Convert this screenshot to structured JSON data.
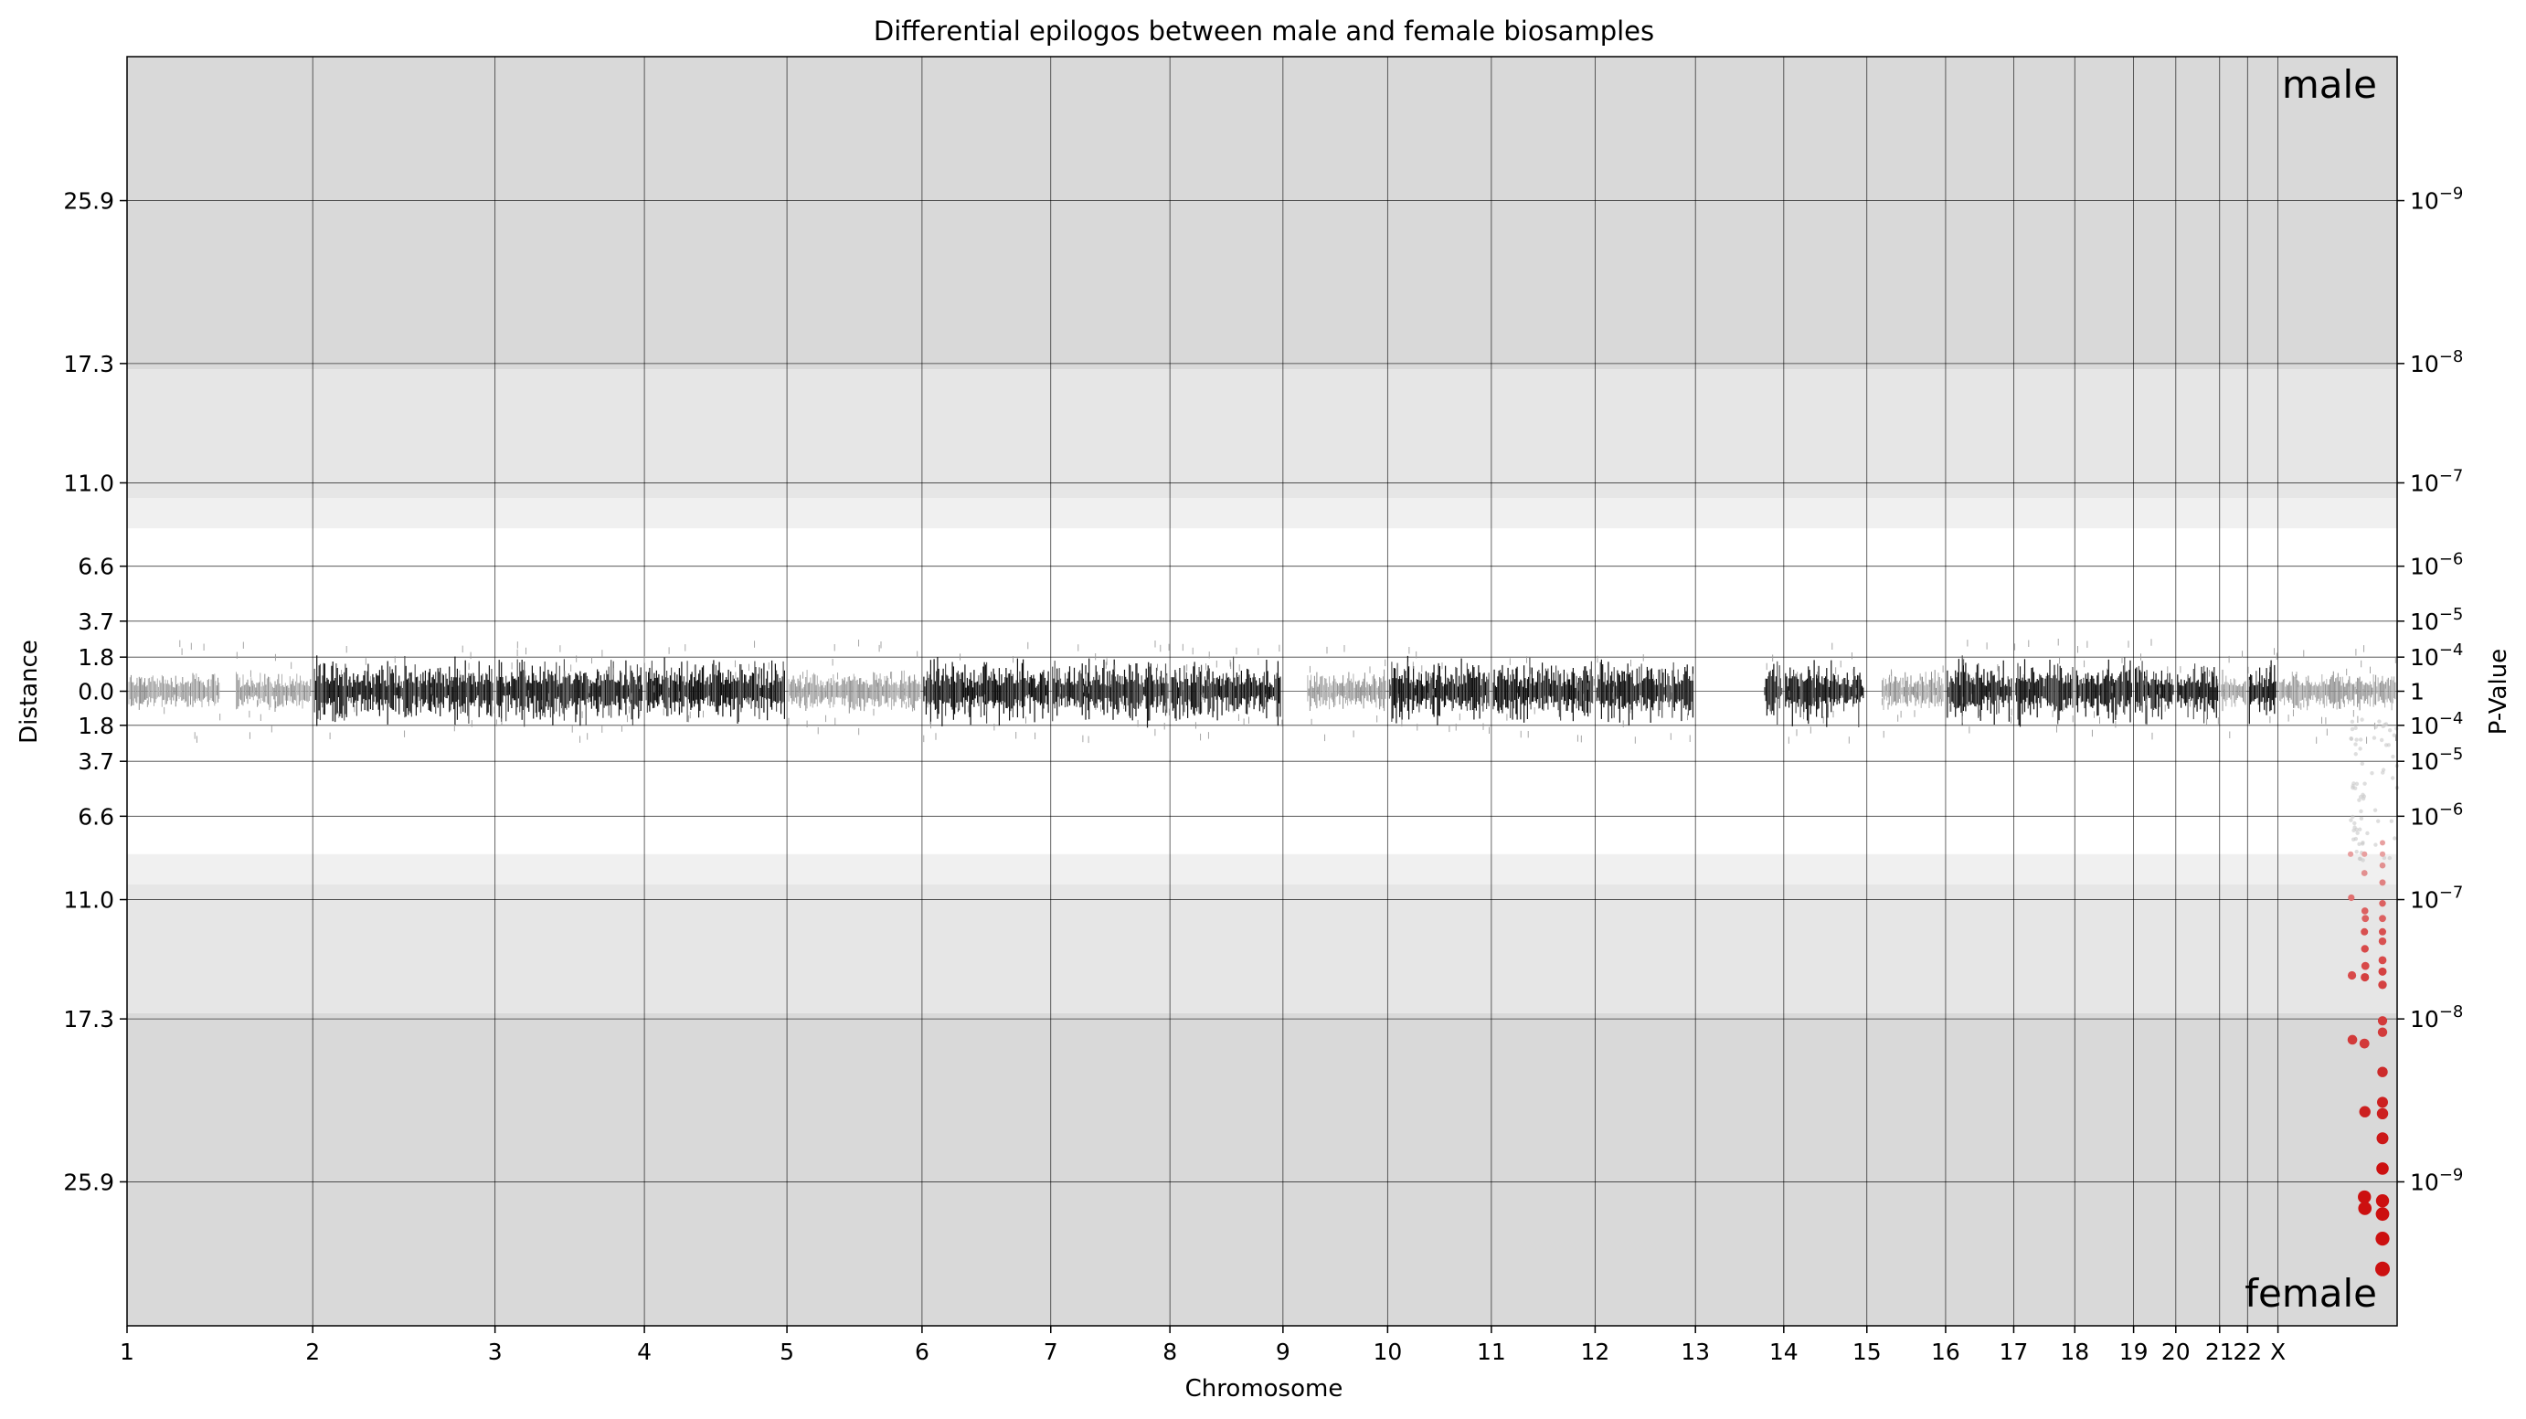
{
  "chart_data": {
    "type": "scatter",
    "title": "Differential epilogos between male and female biosamples",
    "xlabel": "Chromosome",
    "ylabel": "Distance",
    "ylabel_right": "P-Value",
    "top_label": "male",
    "bottom_label": "female",
    "chromosomes": [
      "1",
      "2",
      "3",
      "4",
      "5",
      "6",
      "7",
      "8",
      "9",
      "10",
      "11",
      "12",
      "13",
      "14",
      "15",
      "16",
      "17",
      "18",
      "19",
      "20",
      "21",
      "22",
      "X"
    ],
    "chromosome_bounds": [
      0,
      0.0818,
      0.1621,
      0.2279,
      0.2907,
      0.3502,
      0.4069,
      0.4594,
      0.5092,
      0.5553,
      0.601,
      0.6467,
      0.6909,
      0.7298,
      0.7664,
      0.8011,
      0.8311,
      0.858,
      0.8839,
      0.9025,
      0.9218,
      0.9341,
      0.9475,
      1.0
    ],
    "y_ticks": [
      25.9,
      17.3,
      11.0,
      6.6,
      3.7,
      1.8,
      0.0
    ],
    "y_tick_labels": [
      "25.9",
      "17.3",
      "11.0",
      "6.6",
      "3.7",
      "1.8",
      "0.0"
    ],
    "pvalue_ticks": [
      {
        "distance": 25.9,
        "base": "10",
        "exp": "−9"
      },
      {
        "distance": 17.3,
        "base": "10",
        "exp": "−8"
      },
      {
        "distance": 11.0,
        "base": "10",
        "exp": "−7"
      },
      {
        "distance": 6.6,
        "base": "10",
        "exp": "−6"
      },
      {
        "distance": 3.7,
        "base": "10",
        "exp": "−5"
      },
      {
        "distance": 1.8,
        "base": "10",
        "exp": "−4"
      },
      {
        "distance": 0.0,
        "base": "1",
        "exp": ""
      }
    ],
    "ylim": [
      -33.5,
      33.5
    ],
    "grid": true,
    "background_bands": [
      {
        "from": 17.0,
        "to": 33.5,
        "color": "#d9d9d9"
      },
      {
        "from": 10.2,
        "to": 17.0,
        "color": "#e6e6e6"
      },
      {
        "from": 8.6,
        "to": 10.2,
        "color": "#f0f0f0"
      }
    ],
    "points": [
      {
        "x": 0.9795,
        "y": -8.6,
        "color": "#e8a0a0"
      },
      {
        "x": 0.9798,
        "y": -10.9,
        "color": "#e07070"
      },
      {
        "x": 0.9801,
        "y": -15.0,
        "color": "#d84a4a"
      },
      {
        "x": 0.9803,
        "y": -18.4,
        "color": "#d23a3a"
      },
      {
        "x": 0.9856,
        "y": -8.6,
        "color": "#e8a0a0"
      },
      {
        "x": 0.9856,
        "y": -9.6,
        "color": "#e29090"
      },
      {
        "x": 0.9858,
        "y": -11.6,
        "color": "#dc6060"
      },
      {
        "x": 0.986,
        "y": -12.0,
        "color": "#dc6060"
      },
      {
        "x": 0.9856,
        "y": -12.7,
        "color": "#d85050"
      },
      {
        "x": 0.9858,
        "y": -13.6,
        "color": "#d84a4a"
      },
      {
        "x": 0.986,
        "y": -14.5,
        "color": "#d84a4a"
      },
      {
        "x": 0.9858,
        "y": -15.1,
        "color": "#d44040"
      },
      {
        "x": 0.9856,
        "y": -18.6,
        "color": "#d23a3a"
      },
      {
        "x": 0.9858,
        "y": -22.2,
        "color": "#cc2020"
      },
      {
        "x": 0.9856,
        "y": -26.7,
        "color": "#cc1010"
      },
      {
        "x": 0.9858,
        "y": -27.3,
        "color": "#cc1010"
      },
      {
        "x": 1.0,
        "y": -8.0,
        "color": "#e8a0a0"
      },
      {
        "x": 1.0,
        "y": -8.6,
        "color": "#e8a0a0"
      },
      {
        "x": 1.0,
        "y": -9.2,
        "color": "#e29090"
      },
      {
        "x": 1.0,
        "y": -10.1,
        "color": "#e08080"
      },
      {
        "x": 1.0,
        "y": -11.2,
        "color": "#dc6060"
      },
      {
        "x": 1.0,
        "y": -12.0,
        "color": "#dc6060"
      },
      {
        "x": 1.0,
        "y": -12.7,
        "color": "#d85050"
      },
      {
        "x": 1.0,
        "y": -13.2,
        "color": "#d85050"
      },
      {
        "x": 1.0,
        "y": -14.2,
        "color": "#d84a4a"
      },
      {
        "x": 1.0,
        "y": -14.8,
        "color": "#d44040"
      },
      {
        "x": 1.0,
        "y": -15.5,
        "color": "#d44040"
      },
      {
        "x": 1.0,
        "y": -17.4,
        "color": "#d23a3a"
      },
      {
        "x": 1.0,
        "y": -18.0,
        "color": "#d23a3a"
      },
      {
        "x": 1.0,
        "y": -20.1,
        "color": "#cc2a2a"
      },
      {
        "x": 1.0,
        "y": -21.7,
        "color": "#cc2020"
      },
      {
        "x": 1.0,
        "y": -22.3,
        "color": "#cc2020"
      },
      {
        "x": 1.0,
        "y": -23.6,
        "color": "#cc1818"
      },
      {
        "x": 1.0,
        "y": -25.2,
        "color": "#cc1010"
      },
      {
        "x": 1.0,
        "y": -26.9,
        "color": "#cc1010"
      },
      {
        "x": 1.0,
        "y": -27.6,
        "color": "#cc1010"
      },
      {
        "x": 1.0,
        "y": -28.9,
        "color": "#cc1010"
      },
      {
        "x": 1.0,
        "y": -30.5,
        "color": "#cc1010"
      }
    ]
  }
}
